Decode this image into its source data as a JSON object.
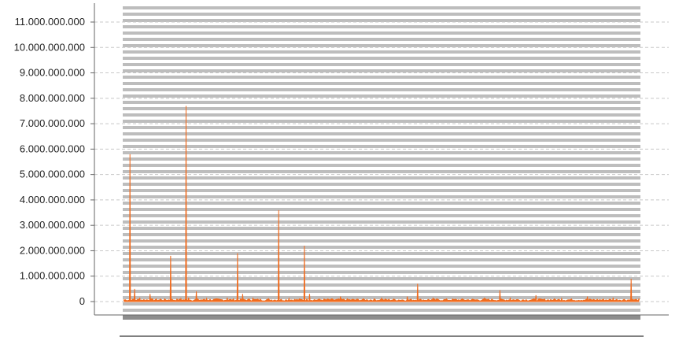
{
  "chart_data": {
    "type": "area",
    "title": "",
    "xlabel": "",
    "ylabel": "",
    "ylim": [
      0,
      11000000000
    ],
    "yticks": [
      "0",
      "1.000.000.000",
      "2.000.000.000",
      "3.000.000.000",
      "4.000.000.000",
      "5.000.000.000",
      "6.000.000.000",
      "7.000.000.000",
      "8.000.000.000",
      "9.000.000.000",
      "10.000.000.000",
      "11.000.000.000"
    ],
    "grid": "dashed horizontal",
    "series": [
      {
        "color": "#f26b1d",
        "points": [
          [
            0,
            50000000
          ],
          [
            0.011,
            5800000000
          ],
          [
            0.013,
            60000000
          ],
          [
            0.02,
            500000000
          ],
          [
            0.03,
            150000000
          ],
          [
            0.05,
            300000000
          ],
          [
            0.07,
            100000000
          ],
          [
            0.09,
            1800000000
          ],
          [
            0.11,
            120000000
          ],
          [
            0.12,
            7700000000
          ],
          [
            0.125,
            150000000
          ],
          [
            0.14,
            400000000
          ],
          [
            0.16,
            120000000
          ],
          [
            0.2,
            150000000
          ],
          [
            0.22,
            1900000000
          ],
          [
            0.23,
            300000000
          ],
          [
            0.25,
            150000000
          ],
          [
            0.28,
            100000000
          ],
          [
            0.3,
            3600000000
          ],
          [
            0.32,
            120000000
          ],
          [
            0.35,
            2200000000
          ],
          [
            0.36,
            300000000
          ],
          [
            0.42,
            200000000
          ],
          [
            0.5,
            150000000
          ],
          [
            0.55,
            200000000
          ],
          [
            0.57,
            700000000
          ],
          [
            0.6,
            150000000
          ],
          [
            0.7,
            150000000
          ],
          [
            0.73,
            450000000
          ],
          [
            0.75,
            150000000
          ],
          [
            0.8,
            250000000
          ],
          [
            0.85,
            120000000
          ],
          [
            0.9,
            200000000
          ],
          [
            0.95,
            150000000
          ],
          [
            0.985,
            900000000
          ],
          [
            1,
            100000000
          ]
        ]
      }
    ]
  }
}
